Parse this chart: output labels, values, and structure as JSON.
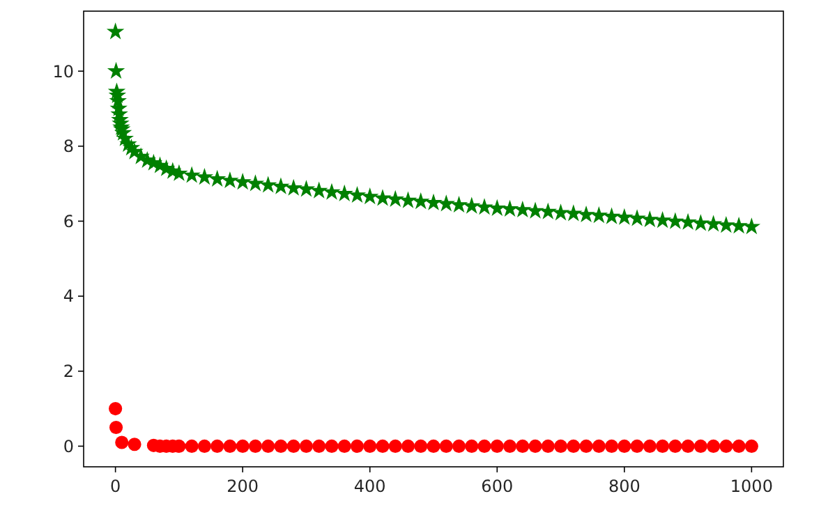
{
  "chart_data": {
    "type": "scatter",
    "x": [
      0,
      1,
      2,
      3,
      4,
      5,
      6,
      7,
      8,
      9,
      10,
      12,
      15,
      20,
      25,
      30,
      40,
      50,
      60,
      70,
      80,
      90,
      100,
      120,
      140,
      160,
      180,
      200,
      220,
      240,
      260,
      280,
      300,
      320,
      340,
      360,
      380,
      400,
      420,
      440,
      460,
      480,
      500,
      520,
      540,
      560,
      580,
      600,
      620,
      640,
      660,
      680,
      700,
      720,
      740,
      760,
      780,
      800,
      820,
      840,
      860,
      880,
      900,
      920,
      940,
      960,
      980,
      1000
    ],
    "series": [
      {
        "color": "#008000",
        "marker": "star",
        "values": [
          11.05,
          10.0,
          9.45,
          9.35,
          9.2,
          9.0,
          8.85,
          8.7,
          8.6,
          8.5,
          8.45,
          8.35,
          8.2,
          8.05,
          7.95,
          7.85,
          7.72,
          7.62,
          7.55,
          7.48,
          7.4,
          7.33,
          7.27,
          7.22,
          7.17,
          7.12,
          7.08,
          7.04,
          7.0,
          6.96,
          6.92,
          6.88,
          6.85,
          6.81,
          6.77,
          6.73,
          6.69,
          6.65,
          6.61,
          6.58,
          6.55,
          6.52,
          6.49,
          6.46,
          6.43,
          6.4,
          6.37,
          6.34,
          6.32,
          6.3,
          6.27,
          6.25,
          6.22,
          6.2,
          6.17,
          6.15,
          6.12,
          6.1,
          6.07,
          6.04,
          6.02,
          5.99,
          5.97,
          5.94,
          5.92,
          5.89,
          5.87,
          5.85
        ]
      },
      {
        "color": "#ff0000",
        "marker": "circle",
        "values": [
          1.0,
          0.5,
          null,
          null,
          null,
          null,
          null,
          null,
          null,
          null,
          0.1,
          null,
          null,
          null,
          null,
          0.05,
          null,
          null,
          0.02,
          0,
          0,
          0,
          0,
          0,
          0,
          0,
          0,
          0,
          0,
          0,
          0,
          0,
          0,
          0,
          0,
          0,
          0,
          0,
          0,
          0,
          0,
          0,
          0,
          0,
          0,
          0,
          0,
          0,
          0,
          0,
          0,
          0,
          0,
          0,
          0,
          0,
          0,
          0,
          0,
          0,
          0,
          0,
          0,
          0,
          0,
          0,
          0,
          0
        ]
      }
    ],
    "xlim": [
      -50,
      1050
    ],
    "ylim": [
      -0.55,
      11.6
    ],
    "xticks": [
      0,
      200,
      400,
      600,
      800,
      1000
    ],
    "yticks": [
      0,
      2,
      4,
      6,
      8,
      10
    ]
  }
}
